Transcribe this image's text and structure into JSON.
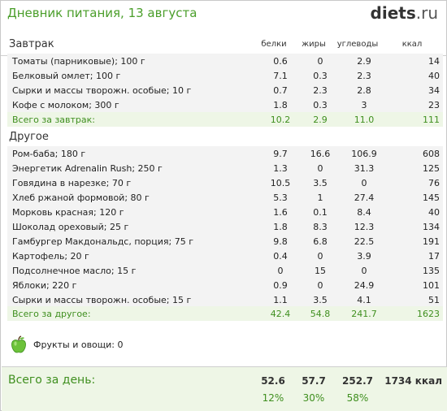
{
  "header": {
    "title": "Дневник питания, 13 августа",
    "logo_main": "diets",
    "logo_tld": ".ru"
  },
  "columns": {
    "protein": "белки",
    "fat": "жиры",
    "carbs": "углеводы",
    "kcal": "ккал"
  },
  "breakfast": {
    "title": "Завтрак",
    "items": [
      {
        "name": "Томаты (парниковые); 100 г",
        "protein": "0.6",
        "fat": "0",
        "carbs": "2.9",
        "kcal": "14"
      },
      {
        "name": "Белковый омлет; 100 г",
        "protein": "7.1",
        "fat": "0.3",
        "carbs": "2.3",
        "kcal": "40"
      },
      {
        "name": "Сырки и массы творожн. особые; 10 г",
        "protein": "0.7",
        "fat": "2.3",
        "carbs": "2.8",
        "kcal": "34"
      },
      {
        "name": "Кофе с молоком; 300 г",
        "protein": "1.8",
        "fat": "0.3",
        "carbs": "3",
        "kcal": "23"
      }
    ],
    "total": {
      "name": "Всего за завтрак:",
      "protein": "10.2",
      "fat": "2.9",
      "carbs": "11.0",
      "kcal": "111"
    }
  },
  "other": {
    "title": "Другое",
    "items": [
      {
        "name": "Ром-баба; 180 г",
        "protein": "9.7",
        "fat": "16.6",
        "carbs": "106.9",
        "kcal": "608"
      },
      {
        "name": "Энергетик Adrenalin Rush; 250 г",
        "protein": "1.3",
        "fat": "0",
        "carbs": "31.3",
        "kcal": "125"
      },
      {
        "name": "Говядина в нарезке; 70 г",
        "protein": "10.5",
        "fat": "3.5",
        "carbs": "0",
        "kcal": "76"
      },
      {
        "name": "Хлеб ржаной формовой; 80 г",
        "protein": "5.3",
        "fat": "1",
        "carbs": "27.4",
        "kcal": "145"
      },
      {
        "name": "Морковь красная; 120 г",
        "protein": "1.6",
        "fat": "0.1",
        "carbs": "8.4",
        "kcal": "40"
      },
      {
        "name": "Шоколад ореховый; 25 г",
        "protein": "1.8",
        "fat": "8.3",
        "carbs": "12.3",
        "kcal": "134"
      },
      {
        "name": "Гамбургер Макдональдс, порция; 75 г",
        "protein": "9.8",
        "fat": "6.8",
        "carbs": "22.5",
        "kcal": "191"
      },
      {
        "name": "Картофель; 20 г",
        "protein": "0.4",
        "fat": "0",
        "carbs": "3.9",
        "kcal": "17"
      },
      {
        "name": "Подсолнечное масло; 15 г",
        "protein": "0",
        "fat": "15",
        "carbs": "0",
        "kcal": "135"
      },
      {
        "name": "Яблоки; 220 г",
        "protein": "0.9",
        "fat": "0",
        "carbs": "24.9",
        "kcal": "101"
      },
      {
        "name": "Сырки и массы творожн. особые; 15 г",
        "protein": "1.1",
        "fat": "3.5",
        "carbs": "4.1",
        "kcal": "51"
      }
    ],
    "total": {
      "name": "Всего за другое:",
      "protein": "42.4",
      "fat": "54.8",
      "carbs": "241.7",
      "kcal": "1623"
    }
  },
  "fruits": {
    "label": "Фрукты и овощи: 0",
    "icon": "apple-icon"
  },
  "day": {
    "label": "Всего за день:",
    "protein": "52.6",
    "fat": "57.7",
    "carbs": "252.7",
    "kcal": "1734 ккал",
    "protein_pct": "12%",
    "fat_pct": "30%",
    "carbs_pct": "58%"
  },
  "colors": {
    "accent": "#4a9e2a",
    "row_bg": "#f3f3f3",
    "total_bg": "#eef6e6"
  }
}
